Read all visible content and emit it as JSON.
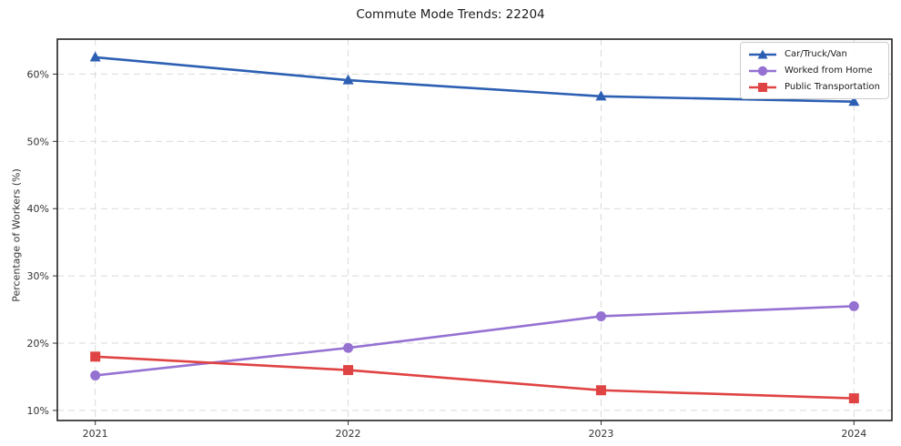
{
  "title": "Commute Mode Trends: 22204",
  "axes": {
    "y_label": "Percentage of Workers (%)",
    "x_tick_labels": [
      "2021",
      "2022",
      "2023",
      "2024"
    ],
    "y_tick_labels": [
      "10%",
      "20%",
      "30%",
      "40%",
      "50%",
      "60%"
    ]
  },
  "chart_data": {
    "type": "line",
    "title": "Commute Mode Trends: 22204",
    "xlabel": "",
    "ylabel": "Percentage of Workers (%)",
    "x": [
      2021,
      2022,
      2023,
      2024
    ],
    "xlim": [
      2020.85,
      2024.15
    ],
    "ylim": [
      8.5,
      65.2
    ],
    "xtick_values": [
      2021,
      2022,
      2023,
      2024
    ],
    "xtick_labels": [
      "2021",
      "2022",
      "2023",
      "2024"
    ],
    "ytick_values": [
      10,
      20,
      30,
      40,
      50,
      60
    ],
    "ytick_labels": [
      "10%",
      "20%",
      "30%",
      "40%",
      "50%",
      "60%"
    ],
    "grid": true,
    "legend_position": "upper right",
    "series": [
      {
        "name": "Car/Truck/Van",
        "marker": "triangle",
        "color": "#2c5fb3",
        "values": [
          62.5,
          59.1,
          56.7,
          55.9
        ]
      },
      {
        "name": "Worked from Home",
        "marker": "circle",
        "color": "#9572d2",
        "values": [
          15.2,
          19.3,
          24.0,
          25.5
        ]
      },
      {
        "name": "Public Transportation",
        "marker": "square",
        "color": "#e04343",
        "values": [
          18.0,
          16.0,
          13.0,
          11.8
        ]
      }
    ],
    "colors": {
      "frame": "#222222",
      "grid": "#d9d9d9",
      "tick_text": "#333333",
      "background": "#ffffff"
    }
  }
}
